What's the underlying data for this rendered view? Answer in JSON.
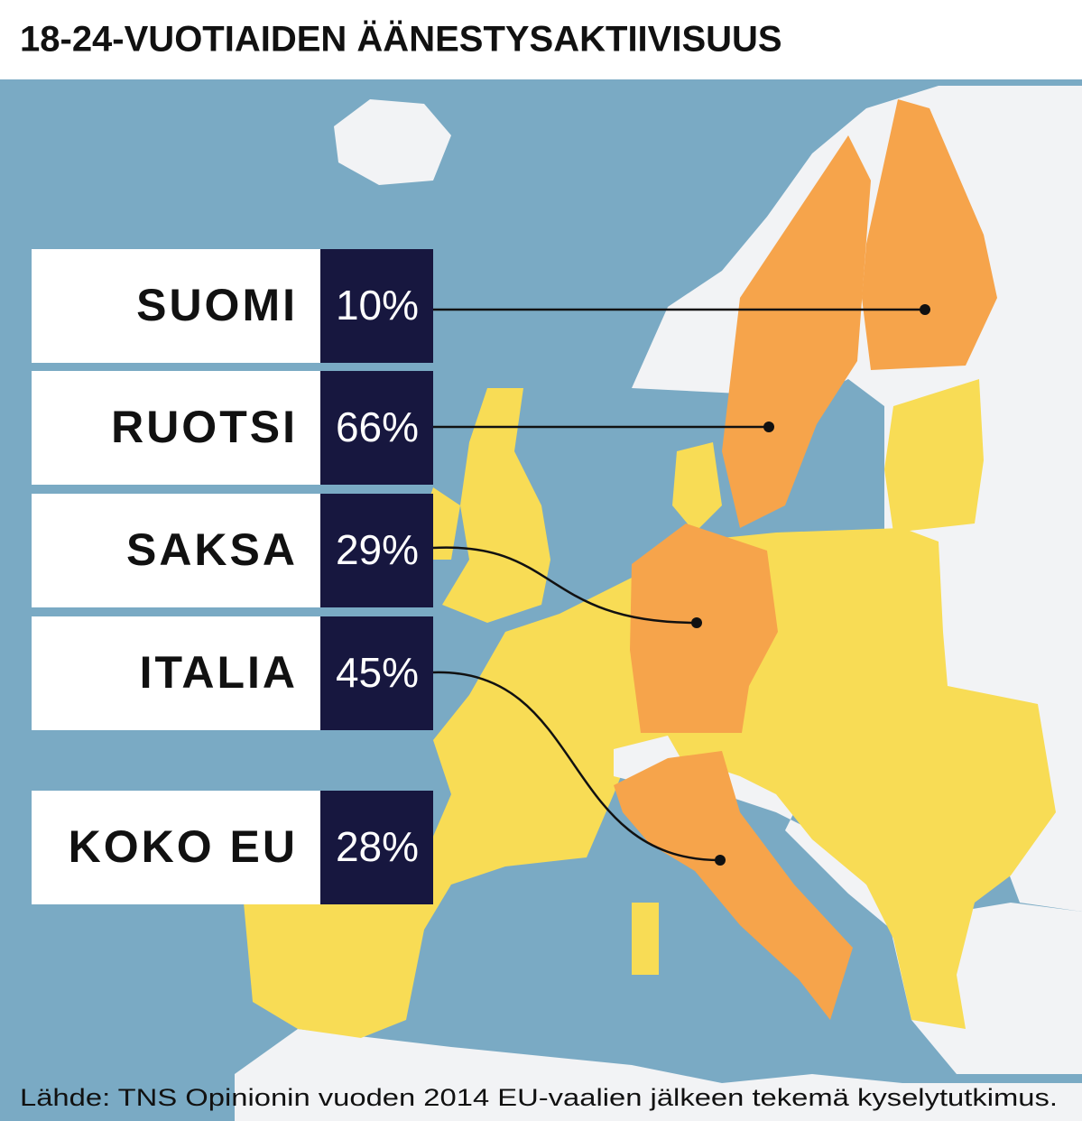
{
  "title": "18-24-VUOTIAIDEN ÄÄNESTYSAKTIIVISUUS",
  "rows": [
    {
      "label": "SUOMI",
      "value": "10%"
    },
    {
      "label": "RUOTSI",
      "value": "66%"
    },
    {
      "label": "SAKSA",
      "value": "29%"
    },
    {
      "label": "ITALIA",
      "value": "45%"
    }
  ],
  "total": {
    "label": "KOKO EU",
    "value": "28%"
  },
  "source": "Lähde: TNS Opinionin vuoden 2014 EU-vaalien jälkeen tekemä kyselytutkimus."
}
